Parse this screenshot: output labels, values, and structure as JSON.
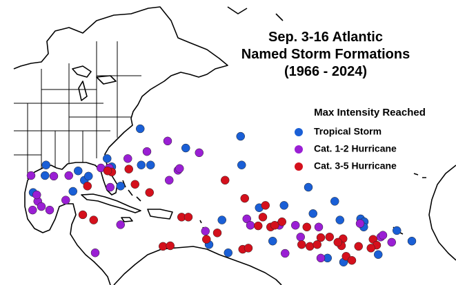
{
  "chart_data": {
    "type": "map-scatter",
    "title": [
      "Sep. 3-16 Atlantic",
      "Named Storm Formations",
      "(1966 - 2024)"
    ],
    "legend_title": "Max Intensity Reached",
    "series": [
      {
        "name": "Tropical Storm",
        "color": "#1a5fd6",
        "lon": [
          -72.9,
          -53.5,
          -64.1,
          -70.9,
          -72.7,
          -53.3,
          -91.1,
          -91.3,
          -84.9,
          -83.7,
          -82.9,
          -93.6,
          -85.9,
          -79.3,
          -76.7,
          -40.4,
          -35.3,
          -49.9,
          -45.1,
          -39.5,
          -30.3,
          -29.6,
          -34.3,
          -23.3,
          -57.1,
          -59.6,
          -47.3,
          -36.7,
          -55.9,
          -26.9,
          -33.6,
          -20.4,
          -29.7,
          -78.4
        ],
        "lat": [
          34.0,
          32.7,
          30.7,
          27.8,
          27.8,
          27.8,
          27.8,
          26.0,
          26.8,
          25.2,
          25.9,
          23.1,
          23.3,
          28.9,
          24.2,
          24.0,
          21.6,
          20.5,
          20.9,
          19.5,
          18.6,
          18.1,
          18.4,
          16.6,
          18.4,
          14.2,
          14.8,
          11.9,
          12.8,
          12.5,
          11.2,
          14.8,
          17.2,
          27.5
        ]
      },
      {
        "name": "Cat. 1-2 Hurricane",
        "color": "#9a1fd4",
        "lon": [
          -71.6,
          -67.6,
          -61.5,
          -65.6,
          -67.3,
          -65.3,
          -89.6,
          -94.0,
          -86.7,
          -78.9,
          -75.3,
          -87.3,
          -92.7,
          -92.0,
          -93.7,
          -90.4,
          -92.9,
          -78.7,
          -46.0,
          -42.9,
          -60.3,
          -52.3,
          -26.4,
          -24.3,
          -30.4,
          -51.6,
          -44.9,
          -41.9,
          -38.4,
          -26.0,
          -76.7,
          -81.6,
          -38.0,
          -80.5
        ],
        "lat": [
          30.1,
          31.9,
          29.9,
          26.9,
          25.2,
          27.2,
          25.9,
          26.0,
          26.0,
          27.3,
          28.9,
          21.8,
          21.6,
          20.7,
          20.1,
          20.1,
          22.7,
          24.0,
          17.5,
          17.5,
          16.5,
          18.6,
          15.5,
          14.6,
          17.8,
          17.5,
          12.7,
          15.5,
          17.2,
          15.8,
          17.6,
          12.8,
          11.9,
          27.3
        ]
      },
      {
        "name": "Cat. 3-5 Hurricane",
        "color": "#d4101c",
        "lon": [
          -75.1,
          -78.4,
          -73.9,
          -71.1,
          -56.5,
          -52.7,
          -49.2,
          -50.1,
          -47.7,
          -40.7,
          -38.0,
          -41.7,
          -40.1,
          -36.3,
          -33.7,
          -34.0,
          -33.1,
          -32.0,
          -30.7,
          -27.9,
          -27.2,
          -45.5,
          -46.9,
          -53.1,
          -52.0,
          -60.1,
          -64.9,
          -63.6,
          -68.5,
          -67.1,
          -84.0,
          -81.9,
          -79.2,
          -48.7,
          -58.0,
          -83.1,
          -28.3,
          -34.7,
          -38.7
        ],
        "lat": [
          27.1,
          26.6,
          24.5,
          23.1,
          25.2,
          22.1,
          18.9,
          17.4,
          17.2,
          17.2,
          15.4,
          14.2,
          13.9,
          15.5,
          15.2,
          14.0,
          12.2,
          11.5,
          13.9,
          15.1,
          14.1,
          18.1,
          17.5,
          13.4,
          13.6,
          15.1,
          18.9,
          18.9,
          13.9,
          14.0,
          19.3,
          18.4,
          26.8,
          20.9,
          16.2,
          24.2,
          13.6,
          14.6,
          14.2
        ]
      }
    ]
  }
}
